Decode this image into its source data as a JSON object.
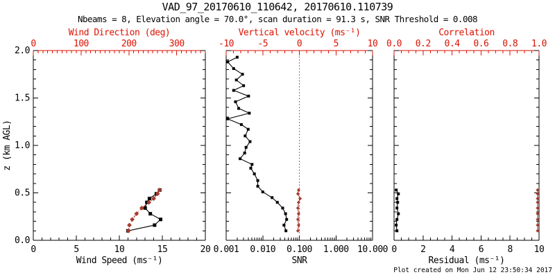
{
  "header": {
    "title": "VAD_97_20170610_110642, 20170610.110739",
    "subtitle": "Nbeams = 8, Elevation angle = 70.0°, scan duration = 91.3 s, SNR Threshold = 0.008"
  },
  "footer": {
    "text": "Plot created on Mon Jun 12 23:50:34 2017"
  },
  "colors": {
    "black": "#000000",
    "axis_red": "#dd1100",
    "data_red": "#a63c2e",
    "background": "#ffffff"
  },
  "chart_data": {
    "type": "line",
    "title": "VAD_97_20170610_110642, 20170610.110739",
    "subtitle": "Nbeams = 8, Elevation angle = 70.0°, scan duration = 91.3 s, SNR Threshold = 0.008",
    "y_axis": {
      "label": "z (km AGL)",
      "range": [
        0,
        2
      ],
      "tick_values": [
        0,
        0.5,
        1,
        1.5,
        2
      ],
      "tick_labels": [
        "0.0",
        "0.5",
        "1.0",
        "1.5",
        "2.0"
      ],
      "minor_step": 0.1
    },
    "panels": [
      {
        "name": "wind",
        "bottom_axis": {
          "label": "Wind Speed (ms⁻¹)",
          "scale": "linear",
          "range": [
            0,
            20
          ],
          "tick_values": [
            0,
            5,
            10,
            15,
            20
          ],
          "tick_labels": [
            "0",
            "5",
            "10",
            "15",
            "20"
          ],
          "minor_step": 1,
          "color": "black"
        },
        "top_axis": {
          "label": "Wind Direction (deg)",
          "scale": "linear",
          "range": [
            0,
            360
          ],
          "tick_values": [
            0,
            100,
            200,
            300
          ],
          "tick_labels": [
            "0",
            "100",
            "200",
            "300"
          ],
          "minor_step": 10,
          "color": "axis_red"
        },
        "series": [
          {
            "name": "wind-speed",
            "axis": "bottom",
            "color": "black",
            "line": "solid",
            "marker": "square",
            "points": [
              [
                11.0,
                0.1
              ],
              [
                14.1,
                0.16
              ],
              [
                14.8,
                0.22
              ],
              [
                13.6,
                0.28
              ],
              [
                13.0,
                0.34
              ],
              [
                13.2,
                0.4
              ],
              [
                13.5,
                0.44
              ],
              [
                14.3,
                0.49
              ],
              [
                14.7,
                0.53
              ]
            ]
          },
          {
            "name": "wind-direction",
            "axis": "top",
            "color": "data_red",
            "line": "dashed",
            "marker": "diamond",
            "points": [
              [
                199,
                0.1
              ],
              [
                201,
                0.16
              ],
              [
                207,
                0.22
              ],
              [
                216,
                0.28
              ],
              [
                227,
                0.34
              ],
              [
                242,
                0.4
              ],
              [
                252,
                0.44
              ],
              [
                260,
                0.49
              ],
              [
                264,
                0.53
              ]
            ]
          }
        ]
      },
      {
        "name": "snr",
        "bottom_axis": {
          "label": "SNR",
          "scale": "log",
          "range": [
            0.001,
            10
          ],
          "tick_values": [
            0.001,
            0.01,
            0.1,
            1,
            10
          ],
          "tick_labels": [
            "0.001",
            "0.010",
            "0.100",
            "1.000",
            "10.000"
          ],
          "color": "black"
        },
        "top_axis": {
          "label": "Vertical velocity (ms⁻¹)",
          "scale": "linear",
          "range": [
            -10,
            10
          ],
          "tick_values": [
            -10,
            -5,
            0,
            5,
            10
          ],
          "tick_labels": [
            "-10",
            "-5",
            "0",
            "5",
            "10"
          ],
          "minor_step": 1,
          "color": "axis_red"
        },
        "reference_lines": [
          {
            "axis": "top",
            "value": 0,
            "style": "dotted",
            "color": "axis_red"
          }
        ],
        "series": [
          {
            "name": "snr",
            "axis": "bottom",
            "color": "black",
            "line": "solid",
            "marker": "square-small",
            "points": [
              [
                0.043,
                0.1
              ],
              [
                0.038,
                0.16
              ],
              [
                0.045,
                0.22
              ],
              [
                0.042,
                0.28
              ],
              [
                0.035,
                0.34
              ],
              [
                0.025,
                0.4
              ],
              [
                0.018,
                0.45
              ],
              [
                0.01,
                0.51
              ],
              [
                0.0073,
                0.57
              ],
              [
                0.0073,
                0.63
              ],
              [
                0.0059,
                0.7
              ],
              [
                0.0047,
                0.76
              ],
              [
                0.0051,
                0.8
              ],
              [
                0.0024,
                0.86
              ],
              [
                0.0032,
                0.92
              ],
              [
                0.0035,
                0.98
              ],
              [
                0.0045,
                1.04
              ],
              [
                0.0033,
                1.1
              ],
              [
                0.004,
                1.17
              ],
              [
                0.0026,
                1.22
              ],
              [
                0.0011,
                1.28
              ],
              [
                0.0043,
                1.34
              ],
              [
                0.0022,
                1.39
              ],
              [
                0.0018,
                1.46
              ],
              [
                0.0041,
                1.52
              ],
              [
                0.0016,
                1.58
              ],
              [
                0.003,
                1.63
              ],
              [
                0.0019,
                1.69
              ],
              [
                0.0028,
                1.75
              ],
              [
                0.0016,
                1.81
              ],
              [
                0.0011,
                1.88
              ],
              [
                0.002,
                1.93
              ]
            ]
          },
          {
            "name": "vertical-velocity",
            "axis": "top",
            "color": "data_red",
            "line": "solid",
            "marker": "diamond-small",
            "points": [
              [
                -0.2,
                0.1
              ],
              [
                -0.1,
                0.16
              ],
              [
                -0.2,
                0.22
              ],
              [
                -0.1,
                0.28
              ],
              [
                -0.2,
                0.34
              ],
              [
                -0.1,
                0.4
              ],
              [
                0.1,
                0.44
              ],
              [
                -0.2,
                0.49
              ],
              [
                -0.1,
                0.53
              ]
            ]
          }
        ]
      },
      {
        "name": "residual",
        "bottom_axis": {
          "label": "Residual (ms⁻¹)",
          "scale": "linear",
          "range": [
            0,
            10
          ],
          "tick_values": [
            0,
            2,
            4,
            6,
            8,
            10
          ],
          "tick_labels": [
            "0",
            "2",
            "4",
            "6",
            "8",
            "10"
          ],
          "minor_step": 0.5,
          "color": "black"
        },
        "top_axis": {
          "label": "Correlation",
          "scale": "linear",
          "range": [
            0,
            1
          ],
          "tick_values": [
            0,
            0.2,
            0.4,
            0.6,
            0.8,
            1.0
          ],
          "tick_labels": [
            "0.0",
            "0.2",
            "0.4",
            "0.6",
            "0.8",
            "1.0"
          ],
          "minor_step": 0.05,
          "color": "axis_red"
        },
        "series": [
          {
            "name": "residual",
            "axis": "bottom",
            "color": "black",
            "line": "solid",
            "marker": "square-small",
            "points": [
              [
                0.2,
                0.1
              ],
              [
                0.15,
                0.16
              ],
              [
                0.2,
                0.22
              ],
              [
                0.3,
                0.28
              ],
              [
                0.2,
                0.34
              ],
              [
                0.25,
                0.4
              ],
              [
                0.2,
                0.44
              ],
              [
                0.3,
                0.49
              ],
              [
                0.15,
                0.53
              ]
            ]
          },
          {
            "name": "correlation",
            "axis": "top",
            "color": "data_red",
            "line": "solid",
            "marker": "diamond-small",
            "points": [
              [
                0.99,
                0.1
              ],
              [
                0.99,
                0.16
              ],
              [
                0.99,
                0.22
              ],
              [
                0.99,
                0.28
              ],
              [
                0.99,
                0.34
              ],
              [
                0.99,
                0.4
              ],
              [
                0.99,
                0.44
              ],
              [
                0.99,
                0.49
              ],
              [
                0.99,
                0.53
              ]
            ]
          }
        ]
      }
    ]
  }
}
